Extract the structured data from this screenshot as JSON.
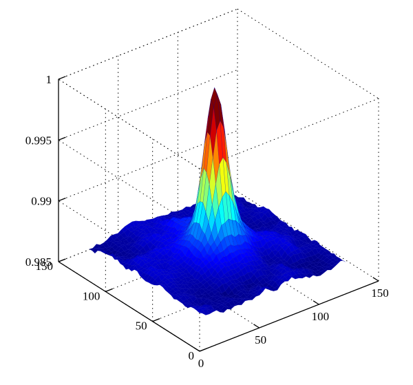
{
  "chart_data": {
    "type": "surface",
    "title": "",
    "xlabel": "",
    "ylabel": "",
    "zlabel": "",
    "grid": true,
    "colormap": "jet",
    "xlim": [
      0,
      150
    ],
    "ylim": [
      0,
      150
    ],
    "zlim": [
      0.985,
      1
    ],
    "x_ticks": [
      {
        "value": 0,
        "label": "0"
      },
      {
        "value": 50,
        "label": "50"
      },
      {
        "value": 100,
        "label": "100"
      },
      {
        "value": 150,
        "label": "150"
      }
    ],
    "y_ticks": [
      {
        "value": 0,
        "label": "0"
      },
      {
        "value": 50,
        "label": "50"
      },
      {
        "value": 100,
        "label": "100"
      },
      {
        "value": 150,
        "label": "150"
      }
    ],
    "z_ticks": [
      {
        "value": 0.985,
        "label": "0.985"
      },
      {
        "value": 0.99,
        "label": "0.99"
      },
      {
        "value": 0.995,
        "label": "0.995"
      },
      {
        "value": 1,
        "label": "1"
      }
    ],
    "surface": {
      "data_x_range": [
        10,
        130
      ],
      "data_y_range": [
        10,
        130
      ],
      "baseline": 0.987,
      "noise_amplitude": 0.0009,
      "peak_center": [
        70,
        72
      ],
      "peak_value": 0.998,
      "colorscale_range": [
        0.9865,
        0.998
      ]
    }
  }
}
